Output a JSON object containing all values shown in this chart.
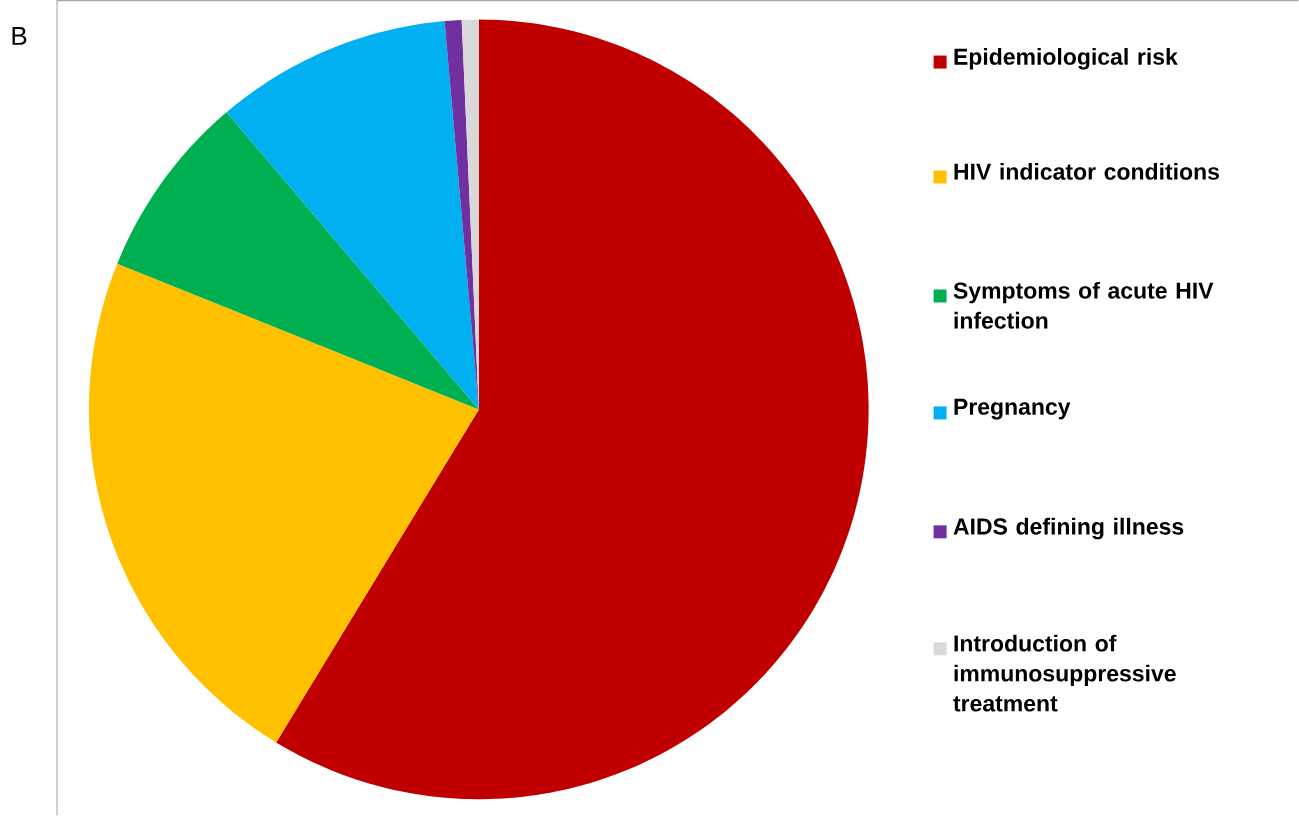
{
  "chart_data": {
    "type": "pie",
    "categories": [
      "Epidemiological risk",
      "HIV indicator conditions",
      "Symptoms of acute HIV infection",
      "Pregnancy",
      "AIDS defining illness",
      "Introduction of immunosuppressive treatment"
    ],
    "values": [
      58.7,
      22.4,
      7.7,
      9.8,
      0.7,
      0.7
    ],
    "colors": [
      "#c00000",
      "#ffc000",
      "#00b050",
      "#00b0f0",
      "#7030a0",
      "#d9d9d9"
    ],
    "legend": "right",
    "annotations": [
      "B"
    ]
  }
}
